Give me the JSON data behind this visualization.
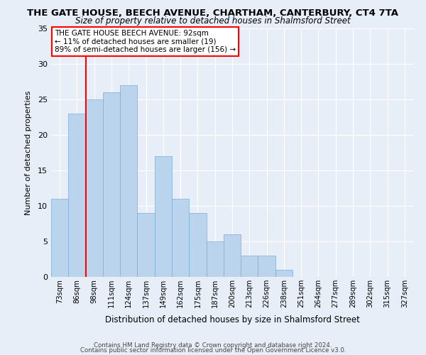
{
  "title": "THE GATE HOUSE, BEECH AVENUE, CHARTHAM, CANTERBURY, CT4 7TA",
  "subtitle": "Size of property relative to detached houses in Shalmsford Street",
  "xlabel": "Distribution of detached houses by size in Shalmsford Street",
  "ylabel": "Number of detached properties",
  "bar_labels": [
    "73sqm",
    "86sqm",
    "98sqm",
    "111sqm",
    "124sqm",
    "137sqm",
    "149sqm",
    "162sqm",
    "175sqm",
    "187sqm",
    "200sqm",
    "213sqm",
    "226sqm",
    "238sqm",
    "251sqm",
    "264sqm",
    "277sqm",
    "289sqm",
    "302sqm",
    "315sqm",
    "327sqm"
  ],
  "bar_heights": [
    11,
    23,
    25,
    26,
    27,
    9,
    17,
    11,
    9,
    5,
    6,
    3,
    3,
    1,
    0,
    0,
    0,
    0,
    0,
    0,
    0
  ],
  "bar_color": "#bad4ed",
  "bar_edge_color": "#bad4ed",
  "ylim": [
    0,
    35
  ],
  "yticks": [
    0,
    5,
    10,
    15,
    20,
    25,
    30,
    35
  ],
  "annotation_line1": "THE GATE HOUSE BEECH AVENUE: 92sqm",
  "annotation_line2": "← 11% of detached houses are smaller (19)",
  "annotation_line3": "89% of semi-detached houses are larger (156) →",
  "red_line_x": 1.5,
  "footer_line1": "Contains HM Land Registry data © Crown copyright and database right 2024.",
  "footer_line2": "Contains public sector information licensed under the Open Government Licence v3.0.",
  "bg_color": "#e8eef8",
  "grid_color": "#ffffff",
  "spine_color": "#aaaaaa"
}
